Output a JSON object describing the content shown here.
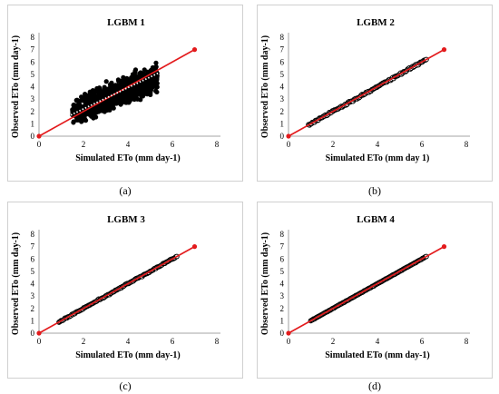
{
  "chart_data": [
    {
      "type": "scatter",
      "title": "LGBM 1",
      "xlabel": "Simulated ETo (mm day-1)",
      "ylabel": "Observed ETo (mm day-1)",
      "xlim": [
        0,
        8
      ],
      "ylim": [
        0,
        8
      ],
      "xticks": [
        "0",
        "2",
        "4",
        "6",
        "8"
      ],
      "yticks": [
        "0",
        "1",
        "2",
        "3",
        "4",
        "5",
        "6",
        "7",
        "8"
      ],
      "caption": "(a)",
      "spread": 0.7,
      "scatter_x_range": [
        1.1,
        5.6
      ],
      "line": {
        "x": [
          0,
          7
        ],
        "y": [
          0,
          7
        ],
        "color": "#e31a1c"
      },
      "trend_line": {
        "x": [
          1.3,
          5.6
        ],
        "y": [
          1.6,
          5.3
        ]
      },
      "marker_color": "#000000"
    },
    {
      "type": "scatter",
      "title": "LGBM 2",
      "xlabel": "Simulated ETo (mm day 1)",
      "ylabel": "Observed ETo (mm day-1)",
      "xlim": [
        0,
        8
      ],
      "ylim": [
        0,
        8
      ],
      "xticks": [
        "0",
        "2",
        "4",
        "6",
        "8"
      ],
      "yticks": [
        "0",
        "1",
        "2",
        "3",
        "4",
        "5",
        "6",
        "7",
        "8"
      ],
      "caption": "(b)",
      "spread": 0.12,
      "scatter_x_range": [
        0.9,
        6.2
      ],
      "line": {
        "x": [
          0,
          7
        ],
        "y": [
          0,
          7
        ],
        "color": "#e31a1c"
      },
      "marker_color": "#000000"
    },
    {
      "type": "scatter",
      "title": "LGBM 3",
      "xlabel": "Simulated ETo (mm day-1)",
      "ylabel": "Observed ETo (mm day-1)",
      "xlim": [
        0,
        8
      ],
      "ylim": [
        0,
        8
      ],
      "xticks": [
        "0",
        "2",
        "4",
        "6",
        "8"
      ],
      "yticks": [
        "0",
        "1",
        "2",
        "3",
        "4",
        "5",
        "6",
        "7",
        "8"
      ],
      "caption": "(c)",
      "spread": 0.08,
      "scatter_x_range": [
        0.9,
        6.2
      ],
      "line": {
        "x": [
          0,
          7
        ],
        "y": [
          0,
          7
        ],
        "color": "#e31a1c"
      },
      "marker_color": "#000000"
    },
    {
      "type": "scatter",
      "title": "LGBM 4",
      "xlabel": "Simulated ETo (mm day-1)",
      "ylabel": "Observed ETo (mm day-1)",
      "xlim": [
        0,
        8
      ],
      "ylim": [
        0,
        8
      ],
      "xticks": [
        "0",
        "2",
        "4",
        "6",
        "8"
      ],
      "yticks": [
        "0",
        "1",
        "2",
        "3",
        "4",
        "5",
        "6",
        "7",
        "8"
      ],
      "caption": "(d)",
      "spread": 0.03,
      "scatter_x_range": [
        1.0,
        6.2
      ],
      "line": {
        "x": [
          0,
          7
        ],
        "y": [
          0,
          7
        ],
        "color": "#e31a1c"
      },
      "marker_color": "#000000"
    }
  ]
}
